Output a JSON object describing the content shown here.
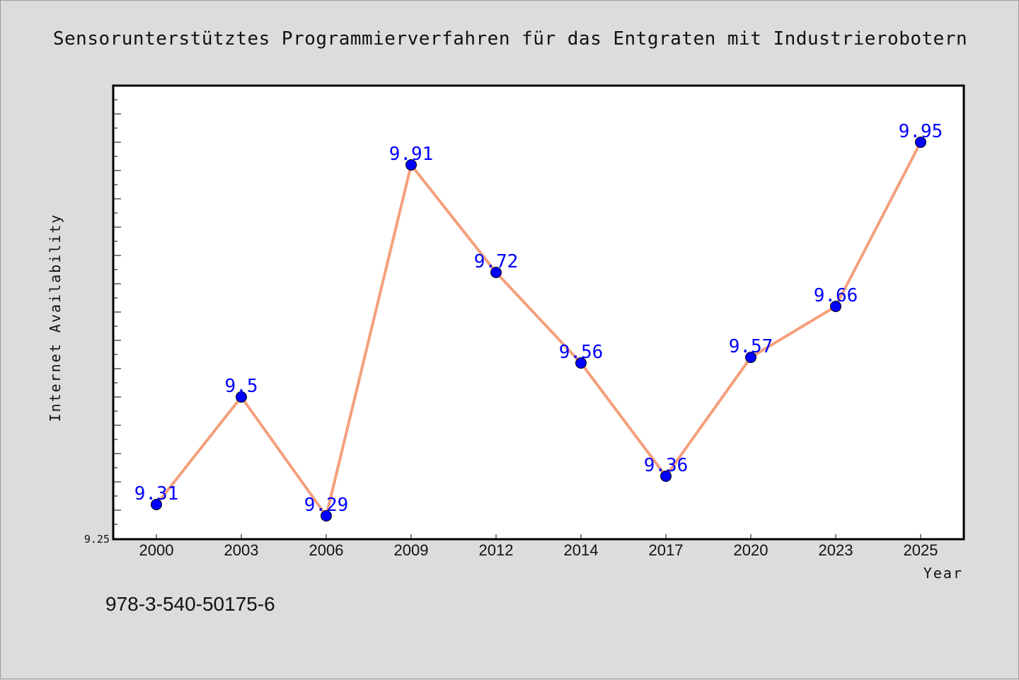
{
  "chart_data": {
    "type": "line",
    "title": "Sensorunterstütztes Programmierverfahren für das Entgraten mit Industrierobotern",
    "xlabel": "Year",
    "ylabel": "Internet Availability",
    "categories": [
      "2000",
      "2003",
      "2006",
      "2009",
      "2012",
      "2014",
      "2017",
      "2020",
      "2023",
      "2025"
    ],
    "series": [
      {
        "values": [
          9.31,
          9.5,
          9.29,
          9.91,
          9.72,
          9.56,
          9.36,
          9.57,
          9.66,
          9.95
        ]
      }
    ],
    "data_labels": [
      "9.31",
      "9.5",
      "9.29",
      "9.91",
      "9.72",
      "9.56",
      "9.36",
      "9.57",
      "9.66",
      "9.95"
    ],
    "ylim": [
      9.25,
      10.05
    ],
    "y_tick_labels": [
      "9.25"
    ],
    "grid": false,
    "legend": "none",
    "colors": {
      "line": "#f4a07c",
      "marker": "#0000ff",
      "label": "#0000ff",
      "background": "#dcdcdc",
      "plot_background": "#ffffff"
    }
  },
  "footer_text": "978-3-540-50175-6"
}
